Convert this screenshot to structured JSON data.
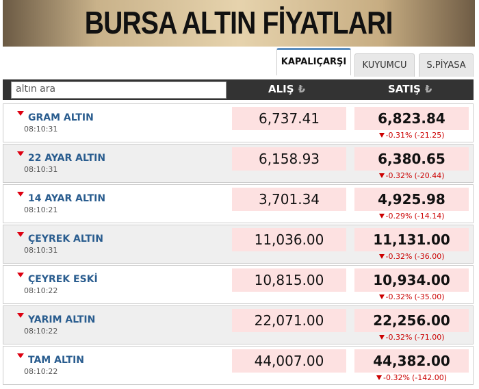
{
  "header": {
    "title": "BURSA ALTIN FİYATLARI"
  },
  "tabs": [
    "KAPALIÇARŞI",
    "KUYUMCU",
    "S.PİYASA"
  ],
  "search": {
    "placeholder": "altın ara"
  },
  "columns": {
    "buy": "ALIŞ",
    "sell": "SATIŞ",
    "currency": "₺"
  },
  "rows": [
    {
      "name": "GRAM ALTIN",
      "time": "08:10:31",
      "buy": "6,737.41",
      "sell": "6,823.84",
      "change_pct": "-0.31%",
      "change": "(-21.25)"
    },
    {
      "name": "22 AYAR ALTIN",
      "time": "08:10:31",
      "buy": "6,158.93",
      "sell": "6,380.65",
      "change_pct": "-0.32%",
      "change": "(-20.44)"
    },
    {
      "name": "14 AYAR ALTIN",
      "time": "08:10:21",
      "buy": "3,701.34",
      "sell": "4,925.98",
      "change_pct": "-0.29%",
      "change": "(-14.14)"
    },
    {
      "name": "ÇEYREK ALTIN",
      "time": "08:10:31",
      "buy": "11,036.00",
      "sell": "11,131.00",
      "change_pct": "-0.32%",
      "change": "(-36.00)"
    },
    {
      "name": "ÇEYREK ESKİ",
      "time": "08:10:22",
      "buy": "10,815.00",
      "sell": "10,934.00",
      "change_pct": "-0.32%",
      "change": "(-35.00)"
    },
    {
      "name": "YARIM ALTIN",
      "time": "08:10:22",
      "buy": "22,071.00",
      "sell": "22,256.00",
      "change_pct": "-0.32%",
      "change": "(-71.00)"
    },
    {
      "name": "TAM ALTIN",
      "time": "08:10:22",
      "buy": "44,007.00",
      "sell": "44,382.00",
      "change_pct": "-0.32%",
      "change": "(-142.00)"
    }
  ]
}
